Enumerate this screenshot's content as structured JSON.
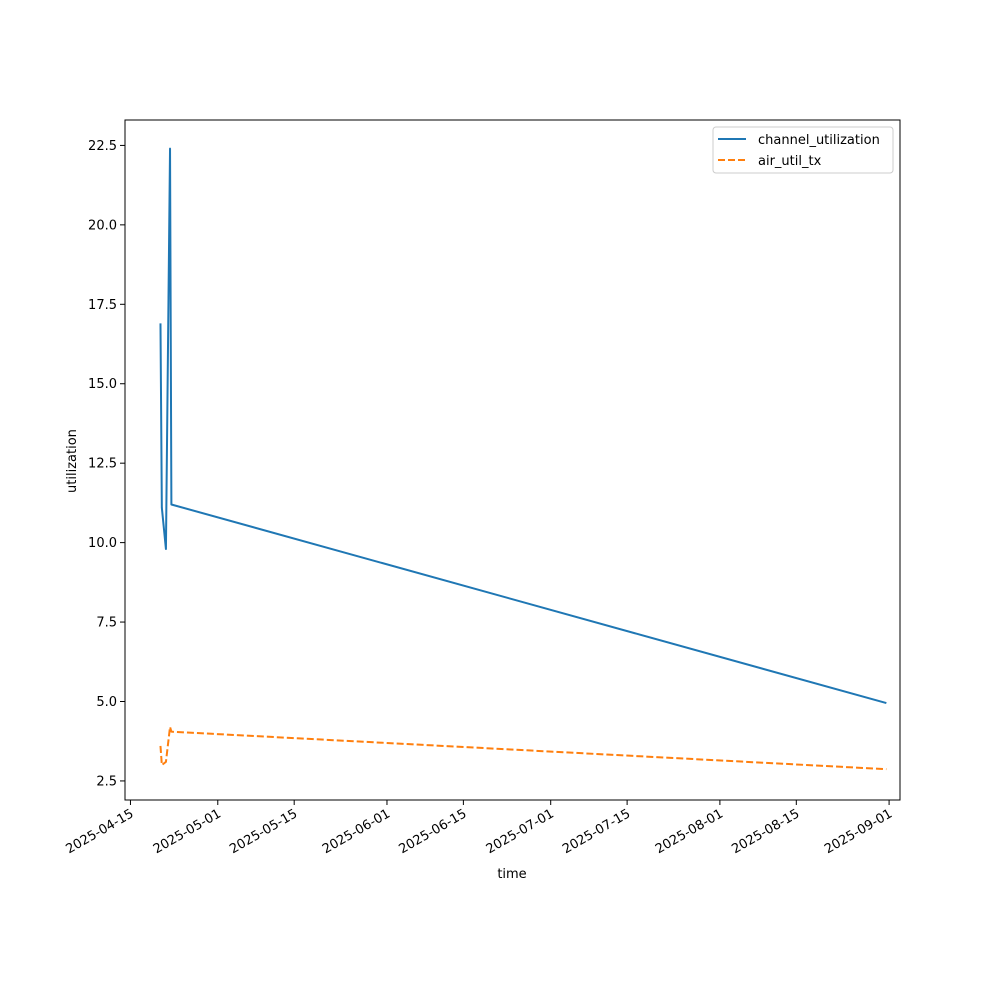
{
  "chart_data": {
    "type": "line",
    "title": "",
    "xlabel": "time",
    "ylabel": "utilization",
    "x_ticks": [
      "2025-04-15",
      "2025-05-01",
      "2025-05-15",
      "2025-06-01",
      "2025-06-15",
      "2025-07-01",
      "2025-07-15",
      "2025-08-01",
      "2025-08-15",
      "2025-09-01"
    ],
    "y_ticks": [
      "2.5",
      "5.0",
      "7.5",
      "10.0",
      "12.5",
      "15.0",
      "17.5",
      "20.0",
      "22.5"
    ],
    "xlim": [
      "2025-04-14",
      "2025-09-03"
    ],
    "ylim": [
      1.9,
      23.3
    ],
    "grid": false,
    "legend_position": "top-right",
    "series": [
      {
        "name": "channel_utilization",
        "color": "#1f77b4",
        "dash": "solid",
        "points": [
          {
            "x": "2025-04-20T12:00",
            "y": 16.9
          },
          {
            "x": "2025-04-20T18:00",
            "y": 11.1
          },
          {
            "x": "2025-04-21T12:00",
            "y": 9.8
          },
          {
            "x": "2025-04-22T06:00",
            "y": 22.4
          },
          {
            "x": "2025-04-22T12:00",
            "y": 11.2
          },
          {
            "x": "2025-08-31T12:00",
            "y": 4.95
          }
        ]
      },
      {
        "name": "air_util_tx",
        "color": "#ff7f0e",
        "dash": "dashed",
        "points": [
          {
            "x": "2025-04-20T12:00",
            "y": 3.6
          },
          {
            "x": "2025-04-20T18:00",
            "y": 3.0
          },
          {
            "x": "2025-04-21T12:00",
            "y": 3.1
          },
          {
            "x": "2025-04-22T06:00",
            "y": 4.2
          },
          {
            "x": "2025-04-22T12:00",
            "y": 4.05
          },
          {
            "x": "2025-08-31T12:00",
            "y": 2.87
          }
        ]
      }
    ]
  }
}
